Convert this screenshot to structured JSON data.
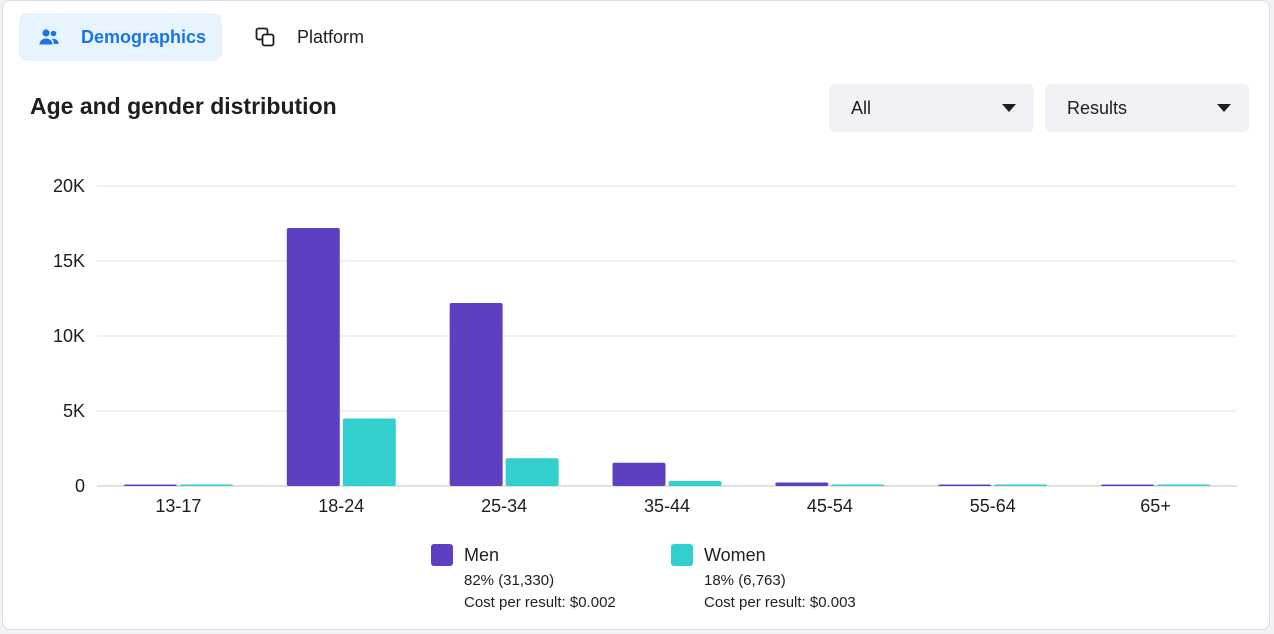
{
  "tabs": [
    {
      "label": "Demographics",
      "icon": "people-icon",
      "active": true
    },
    {
      "label": "Platform",
      "icon": "overlapping-squares-icon",
      "active": false
    }
  ],
  "section_title": "Age and gender distribution",
  "filters": {
    "gender_select": {
      "value": "All"
    },
    "metric_select": {
      "value": "Results"
    }
  },
  "colors": {
    "men": "#5d3fc1",
    "women": "#32cfce",
    "active_tab_bg": "#e7f3ff",
    "active_tab_text": "#1b74e4"
  },
  "chart_data": {
    "type": "bar",
    "categories": [
      "13-17",
      "18-24",
      "25-34",
      "35-44",
      "45-54",
      "55-64",
      "65+"
    ],
    "series": [
      {
        "name": "Men",
        "values": [
          40,
          17200,
          12200,
          1550,
          230,
          40,
          60
        ]
      },
      {
        "name": "Women",
        "values": [
          30,
          4500,
          1850,
          330,
          70,
          20,
          30
        ]
      }
    ],
    "yticks": [
      "0",
      "5K",
      "10K",
      "15K",
      "20K"
    ],
    "ylim": [
      0,
      20000
    ],
    "grid": true,
    "legend": "bottom"
  },
  "legend": [
    {
      "name": "Men",
      "share": "82% (31,330)",
      "cost": "Cost per result: $0.002"
    },
    {
      "name": "Women",
      "share": "18% (6,763)",
      "cost": "Cost per result: $0.003"
    }
  ]
}
